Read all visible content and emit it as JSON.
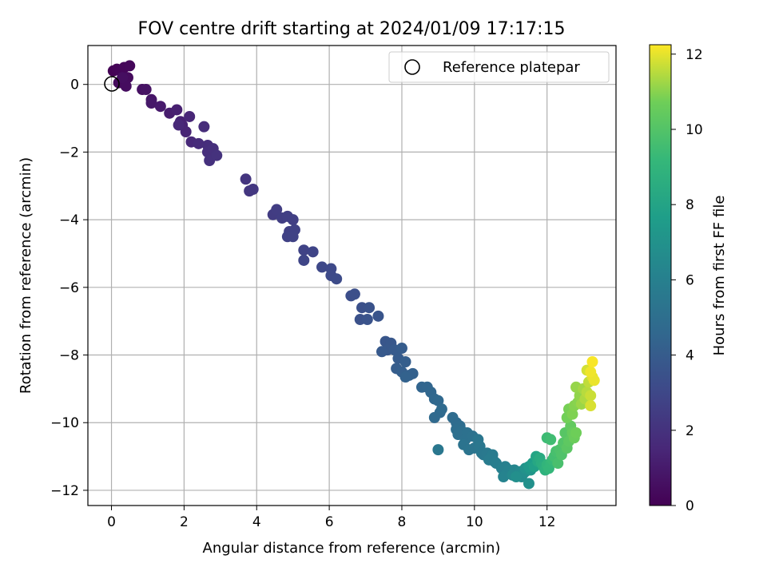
{
  "chart_data": {
    "type": "scatter",
    "title": "FOV centre drift starting at 2024/01/09 17:17:15",
    "xlabel": "Angular distance from reference (arcmin)",
    "ylabel": "Rotation from reference (arcmin)",
    "xlim": [
      -0.65,
      13.9
    ],
    "ylim": [
      -12.45,
      1.15
    ],
    "xticks": [
      0,
      2,
      4,
      6,
      8,
      10,
      12
    ],
    "yticks": [
      0,
      -2,
      -4,
      -6,
      -8,
      -10,
      -12
    ],
    "grid": true,
    "legend": {
      "placement": "top-right",
      "entries": [
        "Reference platepar"
      ]
    },
    "reference_point": {
      "x": 0,
      "y": 0,
      "label": "Reference platepar"
    },
    "colorbar": {
      "label": "Hours from first FF file",
      "colormap": "viridis",
      "range": [
        0,
        12.25
      ],
      "ticks": [
        0,
        2,
        4,
        6,
        8,
        10,
        12
      ]
    },
    "series": [
      {
        "points": [
          [
            0.05,
            0.4,
            0.05
          ],
          [
            0.15,
            0.45,
            0.1
          ],
          [
            0.25,
            0.4,
            0.15
          ],
          [
            0.35,
            0.5,
            0.2
          ],
          [
            0.5,
            0.55,
            0.25
          ],
          [
            0.3,
            0.15,
            0.3
          ],
          [
            0.2,
            0.05,
            0.35
          ],
          [
            0.45,
            0.2,
            0.4
          ],
          [
            0.4,
            -0.05,
            0.45
          ],
          [
            0.3,
            0.2,
            0.5
          ],
          [
            0.85,
            -0.15,
            0.6
          ],
          [
            0.95,
            -0.15,
            0.7
          ],
          [
            1.1,
            -0.45,
            0.8
          ],
          [
            1.1,
            -0.55,
            0.9
          ],
          [
            1.35,
            -0.65,
            1.0
          ],
          [
            1.6,
            -0.85,
            1.1
          ],
          [
            1.8,
            -0.75,
            1.2
          ],
          [
            1.9,
            -1.1,
            1.3
          ],
          [
            1.95,
            -1.2,
            1.35
          ],
          [
            2.05,
            -1.4,
            1.4
          ],
          [
            2.15,
            -0.95,
            1.5
          ],
          [
            1.85,
            -1.2,
            1.55
          ],
          [
            2.2,
            -1.7,
            1.6
          ],
          [
            2.4,
            -1.75,
            1.7
          ],
          [
            2.55,
            -1.25,
            1.75
          ],
          [
            2.65,
            -1.8,
            1.8
          ],
          [
            2.65,
            -2.0,
            1.85
          ],
          [
            2.8,
            -1.9,
            1.9
          ],
          [
            2.7,
            -2.25,
            1.95
          ],
          [
            2.9,
            -2.1,
            2.0
          ],
          [
            3.7,
            -2.8,
            2.15
          ],
          [
            3.8,
            -3.15,
            2.2
          ],
          [
            3.9,
            -3.1,
            2.25
          ],
          [
            4.45,
            -3.85,
            2.45
          ],
          [
            4.55,
            -3.7,
            2.5
          ],
          [
            4.7,
            -3.95,
            2.55
          ],
          [
            4.85,
            -3.9,
            2.6
          ],
          [
            5.0,
            -4.0,
            2.62
          ],
          [
            4.9,
            -4.35,
            2.65
          ],
          [
            5.05,
            -4.3,
            2.68
          ],
          [
            4.85,
            -4.5,
            2.7
          ],
          [
            5.0,
            -4.5,
            2.72
          ],
          [
            5.3,
            -4.9,
            2.8
          ],
          [
            5.55,
            -4.95,
            2.85
          ],
          [
            5.3,
            -5.2,
            2.9
          ],
          [
            5.8,
            -5.4,
            3.0
          ],
          [
            6.05,
            -5.45,
            3.05
          ],
          [
            6.05,
            -5.65,
            3.1
          ],
          [
            6.2,
            -5.75,
            3.15
          ],
          [
            6.6,
            -6.25,
            3.3
          ],
          [
            6.7,
            -6.2,
            3.35
          ],
          [
            6.9,
            -6.6,
            3.4
          ],
          [
            6.85,
            -6.95,
            3.45
          ],
          [
            7.1,
            -6.6,
            3.5
          ],
          [
            7.05,
            -6.95,
            3.55
          ],
          [
            7.35,
            -6.85,
            3.6
          ],
          [
            7.55,
            -7.6,
            3.7
          ],
          [
            7.7,
            -7.65,
            3.75
          ],
          [
            7.6,
            -7.85,
            3.8
          ],
          [
            7.45,
            -7.9,
            3.85
          ],
          [
            7.8,
            -7.85,
            3.9
          ],
          [
            7.9,
            -8.1,
            3.95
          ],
          [
            8.0,
            -7.8,
            4.0
          ],
          [
            7.85,
            -8.4,
            4.05
          ],
          [
            8.1,
            -8.2,
            4.1
          ],
          [
            8.0,
            -8.5,
            4.15
          ],
          [
            8.2,
            -8.6,
            4.2
          ],
          [
            8.3,
            -8.55,
            4.25
          ],
          [
            8.1,
            -8.65,
            4.3
          ],
          [
            8.55,
            -8.95,
            4.45
          ],
          [
            8.7,
            -8.95,
            4.5
          ],
          [
            8.8,
            -9.1,
            4.55
          ],
          [
            8.9,
            -9.3,
            4.6
          ],
          [
            9.0,
            -9.35,
            4.65
          ],
          [
            9.05,
            -9.7,
            4.7
          ],
          [
            8.9,
            -9.85,
            4.72
          ],
          [
            9.1,
            -9.6,
            4.75
          ],
          [
            9.4,
            -9.85,
            4.8
          ],
          [
            9.5,
            -10.0,
            4.85
          ],
          [
            9.6,
            -10.1,
            4.9
          ],
          [
            9.5,
            -10.2,
            4.95
          ],
          [
            9.65,
            -10.25,
            5.0
          ],
          [
            9.55,
            -10.35,
            5.05
          ],
          [
            9.8,
            -10.3,
            5.1
          ],
          [
            9.75,
            -10.5,
            5.15
          ],
          [
            9.95,
            -10.4,
            5.2
          ],
          [
            9.7,
            -10.65,
            5.25
          ],
          [
            9.85,
            -10.8,
            5.3
          ],
          [
            10.0,
            -10.75,
            5.35
          ],
          [
            10.1,
            -10.5,
            5.4
          ],
          [
            10.15,
            -10.7,
            5.45
          ],
          [
            10.2,
            -10.9,
            5.5
          ],
          [
            10.25,
            -10.95,
            5.55
          ],
          [
            9.0,
            -10.8,
            5.5
          ],
          [
            10.35,
            -10.9,
            5.6
          ],
          [
            10.45,
            -11.0,
            5.65
          ],
          [
            10.5,
            -10.95,
            5.7
          ],
          [
            10.4,
            -11.1,
            5.75
          ],
          [
            10.55,
            -11.15,
            5.8
          ],
          [
            10.6,
            -11.2,
            5.85
          ],
          [
            10.75,
            -11.35,
            5.95
          ],
          [
            10.85,
            -11.3,
            6.0
          ],
          [
            10.9,
            -11.45,
            6.05
          ],
          [
            10.95,
            -11.4,
            6.1
          ],
          [
            11.0,
            -11.5,
            6.15
          ],
          [
            10.8,
            -11.6,
            6.2
          ],
          [
            11.1,
            -11.4,
            6.3
          ],
          [
            11.2,
            -11.5,
            6.4
          ],
          [
            11.05,
            -11.55,
            6.45
          ],
          [
            11.25,
            -11.45,
            6.5
          ],
          [
            11.3,
            -11.6,
            6.6
          ],
          [
            11.35,
            -11.5,
            6.7
          ],
          [
            11.4,
            -11.45,
            6.8
          ],
          [
            11.15,
            -11.6,
            6.85
          ],
          [
            11.5,
            -11.8,
            6.9
          ],
          [
            11.4,
            -11.35,
            7.0
          ],
          [
            11.55,
            -11.4,
            7.2
          ],
          [
            11.5,
            -11.3,
            7.4
          ],
          [
            11.6,
            -11.2,
            7.6
          ],
          [
            11.65,
            -11.3,
            7.8
          ],
          [
            11.7,
            -11.0,
            8.0
          ],
          [
            11.75,
            -11.15,
            8.2
          ],
          [
            11.8,
            -11.05,
            8.4
          ],
          [
            11.85,
            -11.2,
            8.5
          ],
          [
            11.9,
            -11.3,
            8.6
          ],
          [
            11.95,
            -11.4,
            8.8
          ],
          [
            12.0,
            -11.25,
            9.0
          ],
          [
            12.05,
            -11.35,
            9.1
          ],
          [
            12.1,
            -11.2,
            9.2
          ],
          [
            12.15,
            -11.1,
            9.3
          ],
          [
            12.0,
            -10.45,
            9.4
          ],
          [
            12.1,
            -10.5,
            9.5
          ],
          [
            12.2,
            -11.0,
            9.6
          ],
          [
            12.25,
            -10.85,
            9.7
          ],
          [
            12.3,
            -11.2,
            9.75
          ],
          [
            12.35,
            -10.8,
            9.85
          ],
          [
            12.4,
            -10.95,
            9.9
          ],
          [
            12.45,
            -10.6,
            10.0
          ],
          [
            12.5,
            -10.3,
            10.1
          ],
          [
            12.55,
            -10.75,
            10.2
          ],
          [
            12.6,
            -10.55,
            10.3
          ],
          [
            12.65,
            -10.1,
            10.4
          ],
          [
            12.7,
            -10.3,
            10.5
          ],
          [
            12.75,
            -10.45,
            10.6
          ],
          [
            12.8,
            -10.3,
            10.7
          ],
          [
            12.55,
            -9.85,
            10.75
          ],
          [
            12.6,
            -9.6,
            10.8
          ],
          [
            12.7,
            -9.75,
            10.9
          ],
          [
            12.75,
            -9.5,
            10.95
          ],
          [
            12.85,
            -9.4,
            11.0
          ],
          [
            12.9,
            -9.2,
            11.1
          ],
          [
            12.8,
            -8.95,
            11.15
          ],
          [
            12.95,
            -9.45,
            11.2
          ],
          [
            13.0,
            -9.0,
            11.3
          ],
          [
            13.05,
            -9.3,
            11.4
          ],
          [
            13.1,
            -9.1,
            11.5
          ],
          [
            13.15,
            -8.8,
            11.6
          ],
          [
            13.2,
            -9.2,
            11.7
          ],
          [
            13.1,
            -8.45,
            11.8
          ],
          [
            13.2,
            -9.5,
            11.85
          ],
          [
            13.25,
            -8.65,
            11.95
          ],
          [
            13.3,
            -8.75,
            12.05
          ],
          [
            13.2,
            -8.5,
            12.1
          ],
          [
            13.25,
            -8.2,
            12.2
          ]
        ]
      }
    ]
  }
}
